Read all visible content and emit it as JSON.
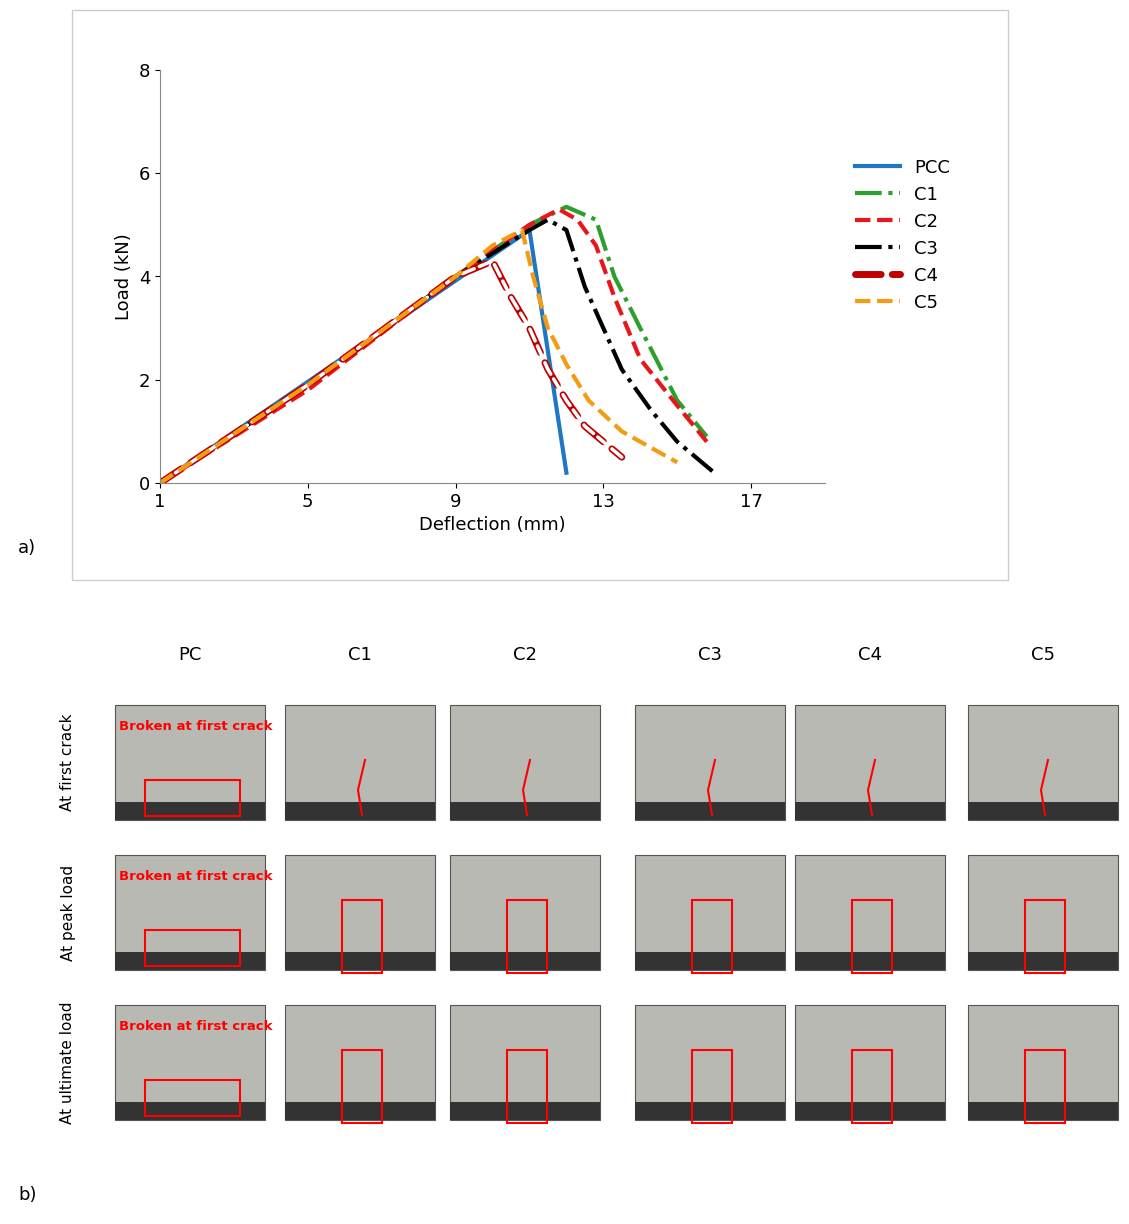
{
  "chart_data": {
    "type": "line",
    "x_label": "Deflection (mm)",
    "y_label": "Load (kN)",
    "xlim": [
      1,
      19
    ],
    "xticks": [
      1,
      5,
      9,
      13,
      17
    ],
    "ylim": [
      0,
      8
    ],
    "yticks": [
      0,
      2,
      4,
      6,
      8
    ],
    "grid": false,
    "legend": "right",
    "series": [
      {
        "name": "PCC",
        "color": "#1f77c4",
        "line_style": "solid",
        "x": [
          1,
          11,
          12
        ],
        "values": [
          0,
          4.9,
          0.2
        ]
      },
      {
        "name": "C1",
        "color": "#2ca02c",
        "line_style": "dashdot",
        "x": [
          1,
          5,
          9,
          11,
          12,
          12.8,
          13.3,
          14,
          15,
          15.8
        ],
        "values": [
          0,
          1.9,
          4.0,
          5.0,
          5.35,
          5.1,
          4.0,
          3.0,
          1.6,
          0.9
        ]
      },
      {
        "name": "C2",
        "color": "#e8161b",
        "line_style": "dashed",
        "x": [
          1,
          5,
          9,
          11,
          11.8,
          12.3,
          12.8,
          13.3,
          14,
          15,
          15.8
        ],
        "values": [
          0,
          1.8,
          4.0,
          5.0,
          5.3,
          5.1,
          4.6,
          3.6,
          2.4,
          1.5,
          0.8
        ]
      },
      {
        "name": "C3",
        "color": "#000000",
        "line_style": "dashdot",
        "x": [
          1,
          5,
          9,
          11,
          11.5,
          12,
          12.5,
          13,
          13.5,
          14.3,
          15,
          16
        ],
        "values": [
          0,
          1.9,
          4.0,
          4.9,
          5.1,
          4.9,
          3.8,
          3.0,
          2.2,
          1.4,
          0.8,
          0.2
        ]
      },
      {
        "name": "C4",
        "color": "#c00000",
        "line_style": "hollow_dash",
        "x": [
          1,
          5,
          9,
          10,
          10.5,
          11,
          11.5,
          12,
          12.5,
          13,
          13.5
        ],
        "values": [
          0,
          1.9,
          4.0,
          4.3,
          3.6,
          3.0,
          2.2,
          1.6,
          1.1,
          0.8,
          0.5
        ]
      },
      {
        "name": "C5",
        "color": "#f39c12",
        "line_style": "dashed",
        "x": [
          1,
          5,
          9,
          10,
          10.8,
          11.1,
          11.5,
          12,
          12.6,
          13.5,
          14.5,
          15
        ],
        "values": [
          0,
          1.9,
          4.0,
          4.6,
          4.9,
          4.0,
          3.0,
          2.3,
          1.6,
          1.0,
          0.6,
          0.4
        ]
      }
    ]
  },
  "figure": {
    "panel_labels": [
      "a)",
      "b)"
    ],
    "photo_grid": {
      "columns": [
        "PC",
        "C1",
        "C2",
        "C3",
        "C4",
        "C5"
      ],
      "rows": [
        "At first crack",
        "At peak load",
        "At ultimate load"
      ],
      "overlay_text": "Broken at first crack"
    }
  }
}
